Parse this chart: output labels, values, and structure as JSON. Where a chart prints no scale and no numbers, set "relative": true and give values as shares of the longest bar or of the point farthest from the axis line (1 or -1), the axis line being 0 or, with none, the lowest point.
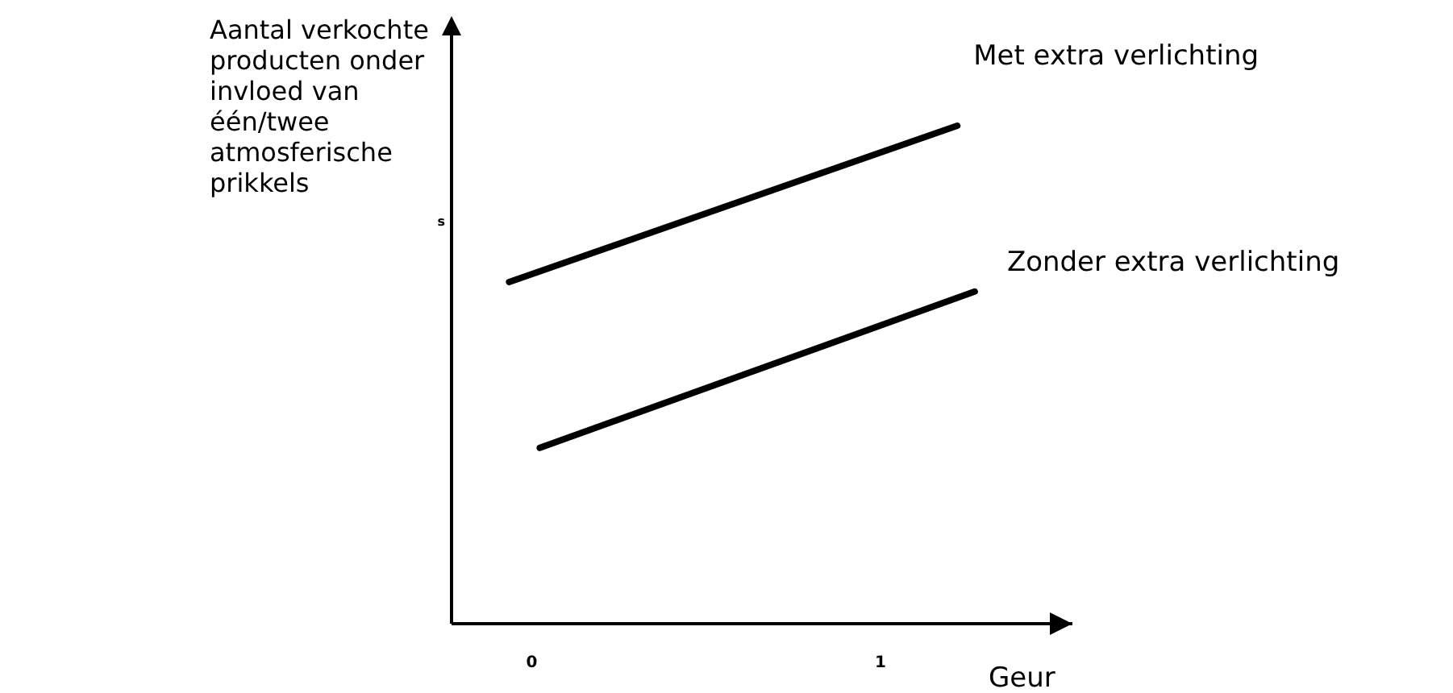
{
  "chart_data": {
    "type": "line",
    "relative": true,
    "ylabel": "Aantal verkochte producten onder invloed van één/twee atmosferische prikkels",
    "xlabel": "Geur",
    "xlim": [
      -0.23,
      1.55
    ],
    "xticks": [
      0,
      1
    ],
    "legend": false,
    "marker": "none",
    "line_style": "solid",
    "tick_labels": "x",
    "annotations": [
      "s"
    ],
    "series": [
      {
        "name": "Met extra verlichting",
        "color": "#000000",
        "x": [
          -0.065,
          1.22
        ],
        "values": [
          0.686,
          1
        ]
      },
      {
        "name": "Zonder extra verlichting",
        "color": "#000000",
        "x": [
          0.023,
          1.27
        ],
        "values": [
          0.353,
          0.667
        ]
      }
    ]
  }
}
